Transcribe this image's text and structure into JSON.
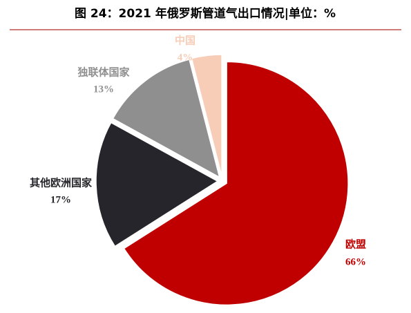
{
  "chart_data": {
    "type": "pie",
    "title": "图 24：2021 年俄罗斯管道气出口情况|单位：%",
    "categories": [
      "欧盟",
      "其他欧洲国家",
      "独联体国家",
      "中国"
    ],
    "values": [
      66,
      17,
      13,
      4
    ],
    "value_labels": [
      "66%",
      "17%",
      "13%",
      "4%"
    ],
    "colors": [
      "#c00000",
      "#25252b",
      "#8f8f8f",
      "#f8cdb8"
    ]
  }
}
